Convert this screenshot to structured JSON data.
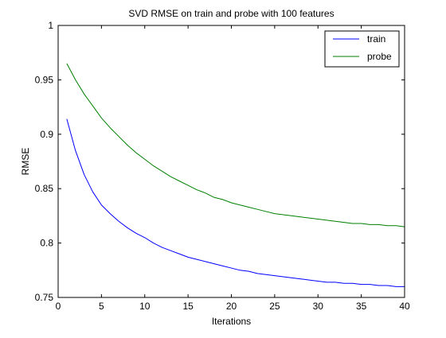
{
  "chart_data": {
    "type": "line",
    "title": "SVD RMSE on train and probe with 100 features",
    "xlabel": "Iterations",
    "ylabel": "RMSE",
    "xlim": [
      0,
      40
    ],
    "ylim": [
      0.75,
      1
    ],
    "xticks": [
      0,
      5,
      10,
      15,
      20,
      25,
      30,
      35,
      40
    ],
    "yticks": [
      0.75,
      0.8,
      0.85,
      0.9,
      0.95,
      1
    ],
    "ytick_labels": [
      "0.75",
      "0.8",
      "0.85",
      "0.9",
      "0.95",
      "1"
    ],
    "grid": false,
    "legend_position": "top-right",
    "x": [
      1,
      2,
      3,
      4,
      5,
      6,
      7,
      8,
      9,
      10,
      11,
      12,
      13,
      14,
      15,
      16,
      17,
      18,
      19,
      20,
      21,
      22,
      23,
      24,
      25,
      26,
      27,
      28,
      29,
      30,
      31,
      32,
      33,
      34,
      35,
      36,
      37,
      38,
      39,
      40
    ],
    "series": [
      {
        "name": "train",
        "color": "#0000ff",
        "values": [
          0.914,
          0.885,
          0.863,
          0.847,
          0.835,
          0.827,
          0.82,
          0.814,
          0.809,
          0.805,
          0.8,
          0.796,
          0.793,
          0.79,
          0.787,
          0.785,
          0.783,
          0.781,
          0.779,
          0.777,
          0.775,
          0.774,
          0.772,
          0.771,
          0.77,
          0.769,
          0.768,
          0.767,
          0.766,
          0.765,
          0.764,
          0.764,
          0.763,
          0.763,
          0.762,
          0.762,
          0.761,
          0.761,
          0.76,
          0.76
        ]
      },
      {
        "name": "probe",
        "color": "#007f00",
        "values": [
          0.965,
          0.95,
          0.937,
          0.926,
          0.915,
          0.906,
          0.898,
          0.89,
          0.883,
          0.877,
          0.871,
          0.866,
          0.861,
          0.857,
          0.853,
          0.849,
          0.846,
          0.842,
          0.84,
          0.837,
          0.835,
          0.833,
          0.831,
          0.829,
          0.827,
          0.826,
          0.825,
          0.824,
          0.823,
          0.822,
          0.821,
          0.82,
          0.819,
          0.818,
          0.818,
          0.817,
          0.817,
          0.816,
          0.816,
          0.815
        ]
      }
    ]
  }
}
